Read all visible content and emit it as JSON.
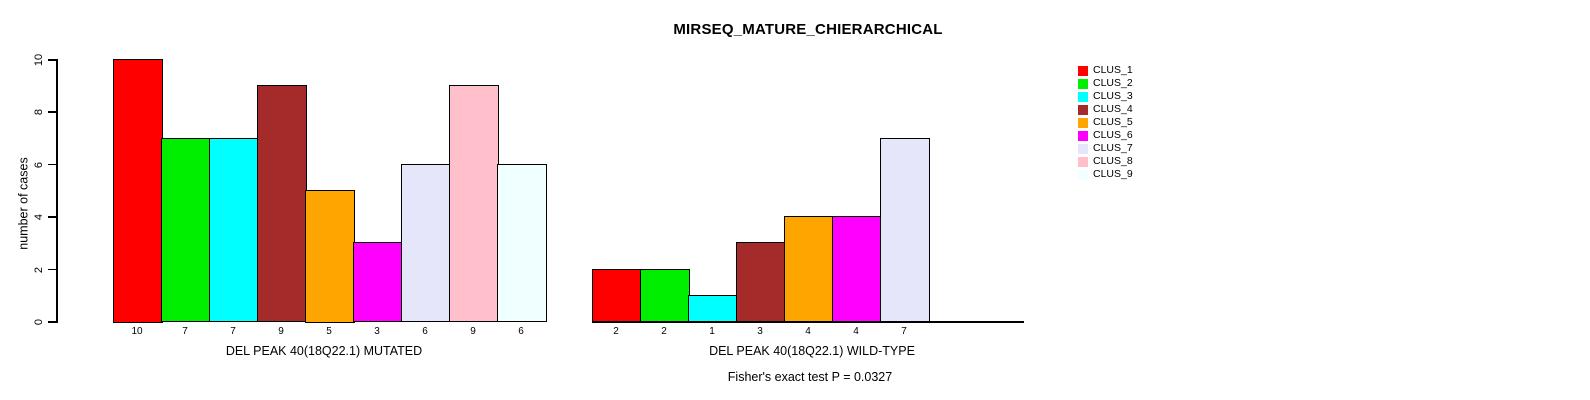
{
  "title": "MIRSEQ_MATURE_CHIERARCHICAL",
  "stats_note": "Fisher's exact test P = 0.0327",
  "y_axis": {
    "label": "number of cases",
    "ticks": [
      0,
      2,
      4,
      6,
      8,
      10
    ],
    "range": [
      0,
      10
    ]
  },
  "legend": {
    "position": "right",
    "items": [
      {
        "label": "CLUS_1",
        "color": "#FF0000"
      },
      {
        "label": "CLUS_2",
        "color": "#00EE00"
      },
      {
        "label": "CLUS_3",
        "color": "#00FFFF"
      },
      {
        "label": "CLUS_4",
        "color": "#A52A2A"
      },
      {
        "label": "CLUS_5",
        "color": "#FFA500"
      },
      {
        "label": "CLUS_6",
        "color": "#FF00FF"
      },
      {
        "label": "CLUS_7",
        "color": "#E6E6FA"
      },
      {
        "label": "CLUS_8",
        "color": "#FFC0CB"
      },
      {
        "label": "CLUS_9",
        "color": "#F0FFFF"
      }
    ]
  },
  "chart_data": [
    {
      "type": "bar",
      "xlabel": "DEL PEAK 40(18Q22.1) MUTATED",
      "categories": [
        "CLUS_1",
        "CLUS_2",
        "CLUS_3",
        "CLUS_4",
        "CLUS_5",
        "CLUS_6",
        "CLUS_7",
        "CLUS_8",
        "CLUS_9"
      ],
      "values": [
        10,
        7,
        7,
        9,
        5,
        3,
        6,
        9,
        6
      ],
      "bar_labels": [
        "10",
        "7",
        "7",
        "9",
        "5",
        "3",
        "6",
        "9",
        "6"
      ],
      "colors": [
        "#FF0000",
        "#00EE00",
        "#00FFFF",
        "#A52A2A",
        "#FFA500",
        "#FF00FF",
        "#E6E6FA",
        "#FFC0CB",
        "#F0FFFF"
      ],
      "ylim": [
        0,
        10
      ],
      "grid": false,
      "baseline_visible": false
    },
    {
      "type": "bar",
      "xlabel": "DEL PEAK 40(18Q22.1) WILD-TYPE",
      "categories": [
        "CLUS_1",
        "CLUS_2",
        "CLUS_3",
        "CLUS_4",
        "CLUS_5",
        "CLUS_6",
        "CLUS_7"
      ],
      "values": [
        2,
        2,
        1,
        3,
        4,
        4,
        7
      ],
      "bar_labels": [
        "2",
        "2",
        "1",
        "3",
        "4",
        "4",
        "7"
      ],
      "colors": [
        "#FF0000",
        "#00EE00",
        "#00FFFF",
        "#A52A2A",
        "#FFA500",
        "#FF00FF",
        "#E6E6FA"
      ],
      "ylim": [
        0,
        10
      ],
      "grid": false,
      "baseline_visible": true,
      "baseline_slots": 9
    }
  ]
}
